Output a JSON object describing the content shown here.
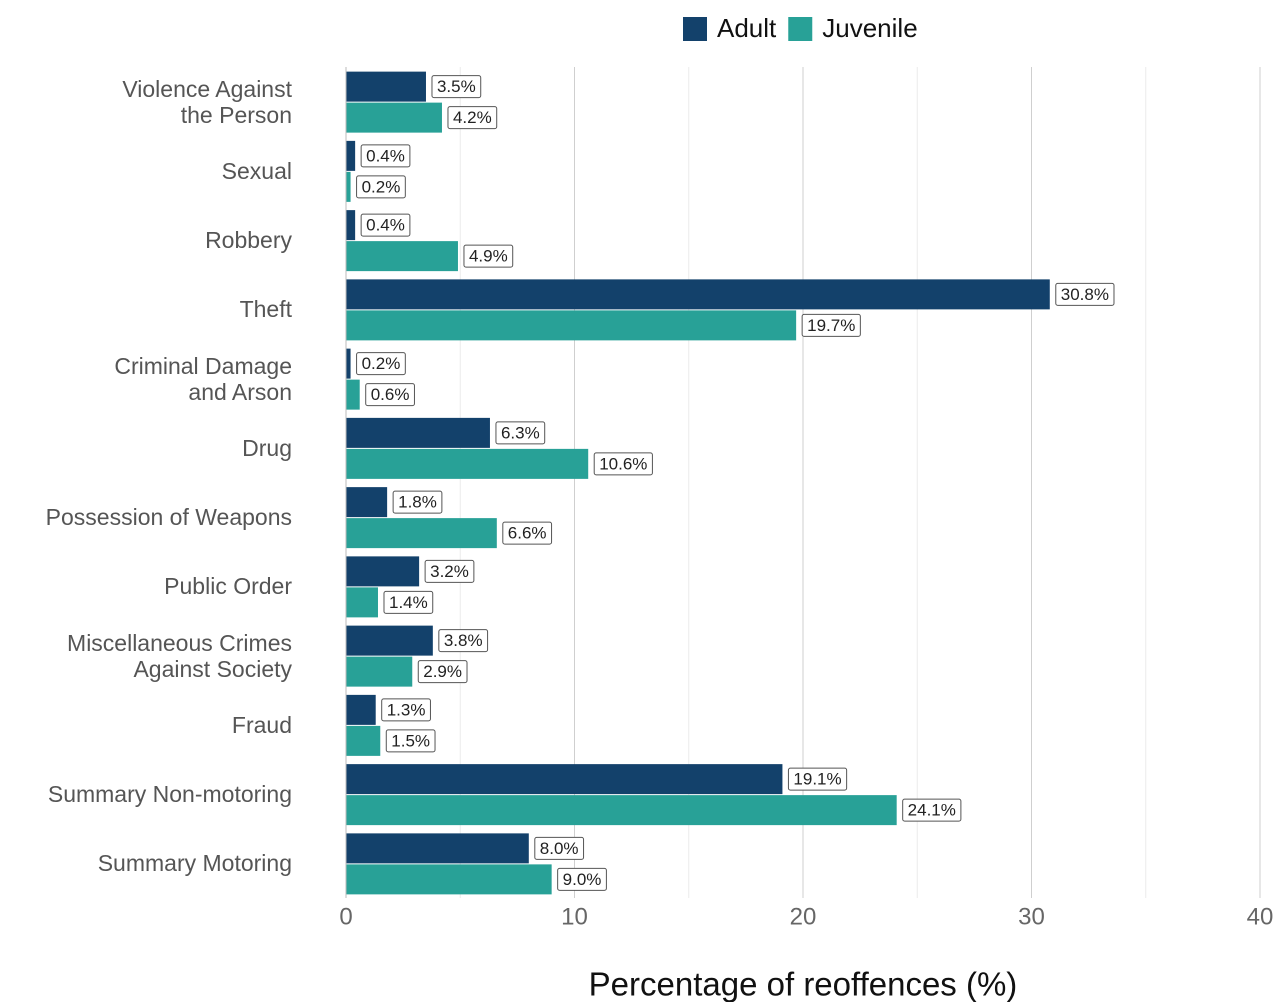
{
  "chart_data": {
    "type": "bar",
    "orientation": "horizontal",
    "x_label": "Percentage of reoffences (%)",
    "categories": [
      "Violence Against\nthe Person",
      "Sexual",
      "Robbery",
      "Theft",
      "Criminal Damage\nand Arson",
      "Drug",
      "Possession of Weapons",
      "Public Order",
      "Miscellaneous Crimes\nAgainst Society",
      "Fraud",
      "Summary Non-motoring",
      "Summary Motoring"
    ],
    "series": [
      {
        "name": "Adult",
        "color": "#13416b",
        "values": [
          3.5,
          0.4,
          0.4,
          30.8,
          0.2,
          6.3,
          1.8,
          3.2,
          3.8,
          1.3,
          19.1,
          8.0
        ],
        "value_labels": [
          "3.5%",
          "0.4%",
          "0.4%",
          "30.8%",
          "0.2%",
          "6.3%",
          "1.8%",
          "3.2%",
          "3.8%",
          "1.3%",
          "19.1%",
          "8.0%"
        ]
      },
      {
        "name": "Juvenile",
        "color": "#28a197",
        "values": [
          4.2,
          0.2,
          4.9,
          19.7,
          0.6,
          10.6,
          6.6,
          1.4,
          2.9,
          1.5,
          24.1,
          9.0
        ],
        "value_labels": [
          "4.2%",
          "0.2%",
          "4.9%",
          "19.7%",
          "0.6%",
          "10.6%",
          "6.6%",
          "1.4%",
          "2.9%",
          "1.5%",
          "24.1%",
          "9.0%"
        ]
      }
    ],
    "xlim": [
      0,
      40
    ],
    "xticks": [
      0,
      10,
      20,
      30,
      40
    ],
    "grid": true,
    "legend": "top"
  }
}
